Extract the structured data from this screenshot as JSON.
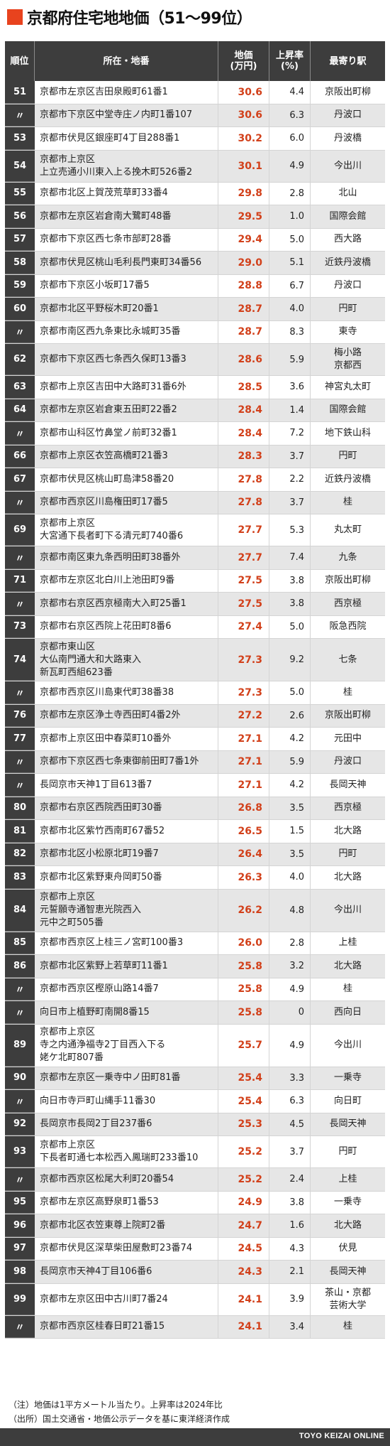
{
  "title": "京都府住宅地地価（51〜99位）",
  "columns": {
    "rank": "順位",
    "address": "所在・地番",
    "price": "地価\n(万円)",
    "rate": "上昇率\n(%)",
    "station": "最寄り駅"
  },
  "rows": [
    {
      "rank": "51",
      "address": "京都市左京区吉田泉殿町61番1",
      "price": "30.6",
      "rate": "4.4",
      "station": "京阪出町柳"
    },
    {
      "rank": "〃",
      "address": "京都市下京区中堂寺庄ノ内町1番107",
      "price": "30.6",
      "rate": "6.3",
      "station": "丹波口"
    },
    {
      "rank": "53",
      "address": "京都市伏見区銀座町4丁目288番1",
      "price": "30.2",
      "rate": "6.0",
      "station": "丹波橋"
    },
    {
      "rank": "54",
      "address": "京都市上京区\n上立売通小川東入上る挽木町526番2",
      "price": "30.1",
      "rate": "4.9",
      "station": "今出川"
    },
    {
      "rank": "55",
      "address": "京都市北区上賀茂荒草町33番4",
      "price": "29.8",
      "rate": "2.8",
      "station": "北山"
    },
    {
      "rank": "56",
      "address": "京都市左京区岩倉南大鷺町48番",
      "price": "29.5",
      "rate": "1.0",
      "station": "国際会館"
    },
    {
      "rank": "57",
      "address": "京都市下京区西七条市部町28番",
      "price": "29.4",
      "rate": "5.0",
      "station": "西大路"
    },
    {
      "rank": "58",
      "address": "京都市伏見区桃山毛利長門東町34番56",
      "price": "29.0",
      "rate": "5.1",
      "station": "近鉄丹波橋"
    },
    {
      "rank": "59",
      "address": "京都市下京区小坂町17番5",
      "price": "28.8",
      "rate": "6.7",
      "station": "丹波口"
    },
    {
      "rank": "60",
      "address": "京都市北区平野桜木町20番1",
      "price": "28.7",
      "rate": "4.0",
      "station": "円町"
    },
    {
      "rank": "〃",
      "address": "京都市南区西九条東比永城町35番",
      "price": "28.7",
      "rate": "8.3",
      "station": "東寺"
    },
    {
      "rank": "62",
      "address": "京都市下京区西七条西久保町13番3",
      "price": "28.6",
      "rate": "5.9",
      "station": "梅小路\n京都西"
    },
    {
      "rank": "63",
      "address": "京都市上京区吉田中大路町31番6外",
      "price": "28.5",
      "rate": "3.6",
      "station": "神宮丸太町"
    },
    {
      "rank": "64",
      "address": "京都市左京区岩倉東五田町22番2",
      "price": "28.4",
      "rate": "1.4",
      "station": "国際会館"
    },
    {
      "rank": "〃",
      "address": "京都市山科区竹鼻堂ノ前町32番1",
      "price": "28.4",
      "rate": "7.2",
      "station": "地下鉄山科"
    },
    {
      "rank": "66",
      "address": "京都市上京区衣笠高橋町21番3",
      "price": "28.3",
      "rate": "3.7",
      "station": "円町"
    },
    {
      "rank": "67",
      "address": "京都市伏見区桃山町島津58番20",
      "price": "27.8",
      "rate": "2.2",
      "station": "近鉄丹波橋"
    },
    {
      "rank": "〃",
      "address": "京都市西京区川島権田町17番5",
      "price": "27.8",
      "rate": "3.7",
      "station": "桂"
    },
    {
      "rank": "69",
      "address": "京都市上京区\n大宮通下長者町下る清元町740番6",
      "price": "27.7",
      "rate": "5.3",
      "station": "丸太町"
    },
    {
      "rank": "〃",
      "address": "京都市南区東九条西明田町38番外",
      "price": "27.7",
      "rate": "7.4",
      "station": "九条"
    },
    {
      "rank": "71",
      "address": "京都市左京区北白川上池田町9番",
      "price": "27.5",
      "rate": "3.8",
      "station": "京阪出町柳"
    },
    {
      "rank": "〃",
      "address": "京都市右京区西京極南大入町25番1",
      "price": "27.5",
      "rate": "3.8",
      "station": "西京極"
    },
    {
      "rank": "73",
      "address": "京都市右京区西院上花田町8番6",
      "price": "27.4",
      "rate": "5.0",
      "station": "阪急西院"
    },
    {
      "rank": "74",
      "address": "京都市東山区\n大仏南門通大和大路東入\n新瓦町西組623番",
      "price": "27.3",
      "rate": "9.2",
      "station": "七条"
    },
    {
      "rank": "〃",
      "address": "京都市西京区川島東代町38番38",
      "price": "27.3",
      "rate": "5.0",
      "station": "桂"
    },
    {
      "rank": "76",
      "address": "京都市左京区浄土寺西田町4番2外",
      "price": "27.2",
      "rate": "2.6",
      "station": "京阪出町柳"
    },
    {
      "rank": "77",
      "address": "京都市上京区田中春菜町10番外",
      "price": "27.1",
      "rate": "4.2",
      "station": "元田中"
    },
    {
      "rank": "〃",
      "address": "京都市下京区西七条東御前田町7番1外",
      "price": "27.1",
      "rate": "5.9",
      "station": "丹波口"
    },
    {
      "rank": "〃",
      "address": "長岡京市天神1丁目613番7",
      "price": "27.1",
      "rate": "4.2",
      "station": "長岡天神"
    },
    {
      "rank": "80",
      "address": "京都市右京区西院西田町30番",
      "price": "26.8",
      "rate": "3.5",
      "station": "西京極"
    },
    {
      "rank": "81",
      "address": "京都市北区紫竹西南町67番52",
      "price": "26.5",
      "rate": "1.5",
      "station": "北大路"
    },
    {
      "rank": "82",
      "address": "京都市北区小松原北町19番7",
      "price": "26.4",
      "rate": "3.5",
      "station": "円町"
    },
    {
      "rank": "83",
      "address": "京都市北区紫野東舟岡町50番",
      "price": "26.3",
      "rate": "4.0",
      "station": "北大路"
    },
    {
      "rank": "84",
      "address": "京都市上京区\n元誓願寺通智恵光院西入\n元中之町505番",
      "price": "26.2",
      "rate": "4.8",
      "station": "今出川"
    },
    {
      "rank": "85",
      "address": "京都市西京区上桂三ノ宮町100番3",
      "price": "26.0",
      "rate": "2.8",
      "station": "上桂"
    },
    {
      "rank": "86",
      "address": "京都市北区紫野上若草町11番1",
      "price": "25.8",
      "rate": "3.2",
      "station": "北大路"
    },
    {
      "rank": "〃",
      "address": "京都市西京区樫原山路14番7",
      "price": "25.8",
      "rate": "4.9",
      "station": "桂"
    },
    {
      "rank": "〃",
      "address": "向日市上植野町南開8番15",
      "price": "25.8",
      "rate": "0",
      "station": "西向日"
    },
    {
      "rank": "89",
      "address": "京都市上京区\n寺之内通浄福寺2丁目西入下る\n姥ケ北町807番",
      "price": "25.7",
      "rate": "4.9",
      "station": "今出川"
    },
    {
      "rank": "90",
      "address": "京都市左京区一乗寺中ノ田町81番",
      "price": "25.4",
      "rate": "3.3",
      "station": "一乗寺"
    },
    {
      "rank": "〃",
      "address": "向日市寺戸町山縄手11番30",
      "price": "25.4",
      "rate": "6.3",
      "station": "向日町"
    },
    {
      "rank": "92",
      "address": "長岡京市長岡2丁目237番6",
      "price": "25.3",
      "rate": "4.5",
      "station": "長岡天神"
    },
    {
      "rank": "93",
      "address": "京都市上京区\n下長者町通七本松西入鳳瑞町233番10",
      "price": "25.2",
      "rate": "3.7",
      "station": "円町"
    },
    {
      "rank": "〃",
      "address": "京都市西京区松尾大利町20番54",
      "price": "25.2",
      "rate": "2.4",
      "station": "上桂"
    },
    {
      "rank": "95",
      "address": "京都市左京区高野泉町1番53",
      "price": "24.9",
      "rate": "3.8",
      "station": "一乗寺"
    },
    {
      "rank": "96",
      "address": "京都市北区衣笠東尊上院町2番",
      "price": "24.7",
      "rate": "1.6",
      "station": "北大路"
    },
    {
      "rank": "97",
      "address": "京都市伏見区深草柴田屋敷町23番74",
      "price": "24.5",
      "rate": "4.3",
      "station": "伏見"
    },
    {
      "rank": "98",
      "address": "長岡京市天神4丁目106番6",
      "price": "24.3",
      "rate": "2.1",
      "station": "長岡天神"
    },
    {
      "rank": "99",
      "address": "京都市左京区田中古川町7番24",
      "price": "24.1",
      "rate": "3.9",
      "station": "茶山・京都\n芸術大学"
    },
    {
      "rank": "〃",
      "address": "京都市西京区桂春日町21番15",
      "price": "24.1",
      "rate": "3.4",
      "station": "桂"
    }
  ],
  "notes": [
    "（注）地価は1平方メートル当たり。上昇率は2024年比",
    "（出所）国土交通省・地価公示データを基に東洋経済作成"
  ],
  "brand": "TOYO KEIZAI ONLINE",
  "colors": {
    "accent": "#e8431e",
    "price": "#d2401a",
    "header_bg": "#3d3d3d",
    "row_shade": "#e6e6e6"
  }
}
